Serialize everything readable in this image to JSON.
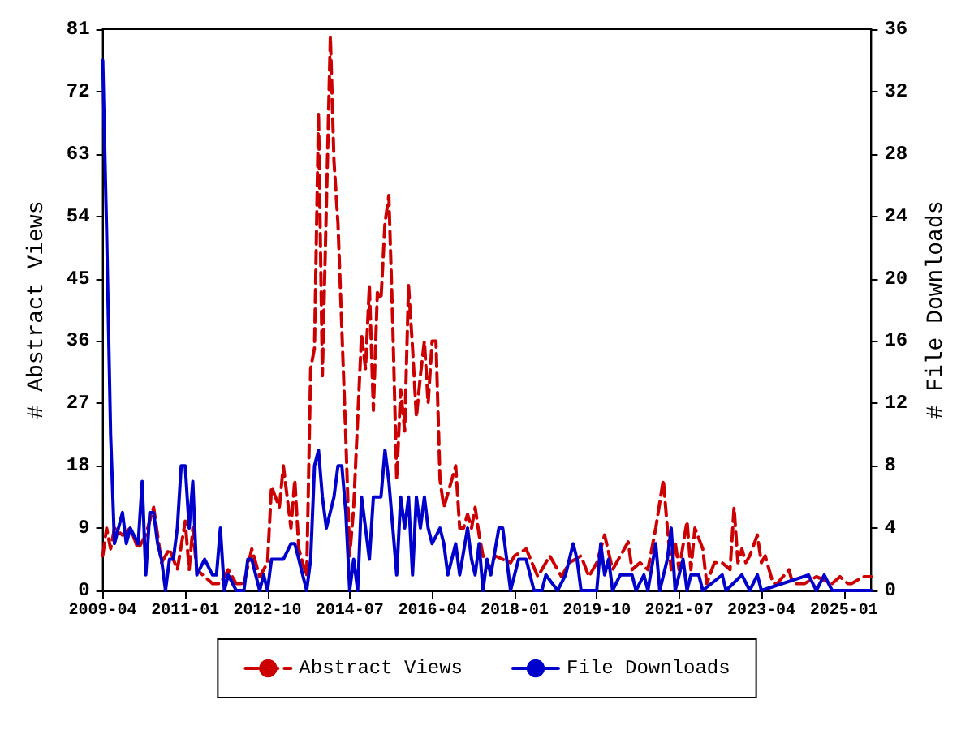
{
  "chart_data": {
    "type": "line",
    "xlabel": null,
    "ylabel": "# Abstract Views",
    "y2label": "# File Downloads",
    "xlim": [
      "2009-04",
      "2025-08"
    ],
    "xticks": [
      "2009-04",
      "2011-01",
      "2012-10",
      "2014-07",
      "2016-04",
      "2018-01",
      "2019-10",
      "2021-07",
      "2023-04",
      "2025-01"
    ],
    "ylim": [
      0,
      81
    ],
    "yticks": [
      0,
      9,
      18,
      27,
      36,
      45,
      54,
      63,
      72,
      81
    ],
    "y2lim": [
      0,
      36
    ],
    "y2ticks": [
      0,
      4,
      8,
      12,
      16,
      20,
      24,
      28,
      32,
      36
    ],
    "grid": false,
    "legend": "bottom",
    "marker": "none",
    "series": [
      {
        "name": "Abstract Views",
        "color": "#cc0000",
        "line_style": "dashed",
        "axis": "y",
        "x": [
          "2009-04",
          "2009-05",
          "2009-06",
          "2009-07",
          "2009-09",
          "2009-11",
          "2010-01",
          "2010-03",
          "2010-05",
          "2010-07",
          "2010-09",
          "2010-11",
          "2011-01",
          "2011-02",
          "2011-03",
          "2011-04",
          "2011-06",
          "2011-08",
          "2011-10",
          "2011-12",
          "2012-02",
          "2012-04",
          "2012-06",
          "2012-08",
          "2012-10",
          "2012-11",
          "2013-01",
          "2013-02",
          "2013-04",
          "2013-05",
          "2013-06",
          "2013-08",
          "2013-09",
          "2013-10",
          "2013-11",
          "2013-12",
          "2014-02",
          "2014-03",
          "2014-04",
          "2014-06",
          "2014-07",
          "2014-08",
          "2014-10",
          "2014-11",
          "2014-12",
          "2015-01",
          "2015-02",
          "2015-03",
          "2015-04",
          "2015-05",
          "2015-06",
          "2015-07",
          "2015-08",
          "2015-09",
          "2015-10",
          "2015-11",
          "2015-12",
          "2016-01",
          "2016-02",
          "2016-03",
          "2016-04",
          "2016-05",
          "2016-06",
          "2016-07",
          "2016-08",
          "2016-09",
          "2016-10",
          "2016-11",
          "2016-12",
          "2017-01",
          "2017-02",
          "2017-03",
          "2017-04",
          "2017-05",
          "2017-06",
          "2017-07",
          "2017-08",
          "2017-12",
          "2018-01",
          "2018-04",
          "2018-07",
          "2018-10",
          "2019-01",
          "2019-03",
          "2019-06",
          "2019-08",
          "2019-10",
          "2019-12",
          "2020-02",
          "2020-06",
          "2020-07",
          "2020-09",
          "2020-11",
          "2021-01",
          "2021-03",
          "2021-04",
          "2021-05",
          "2021-06",
          "2021-07",
          "2021-09",
          "2021-10",
          "2021-11",
          "2022-01",
          "2022-02",
          "2022-04",
          "2022-06",
          "2022-08",
          "2022-09",
          "2022-10",
          "2022-11",
          "2022-12",
          "2023-01",
          "2023-03",
          "2023-04",
          "2023-05",
          "2023-07",
          "2023-08",
          "2023-11",
          "2023-12",
          "2024-03",
          "2024-06",
          "2024-10",
          "2024-12",
          "2025-02",
          "2025-03",
          "2025-06",
          "2025-08"
        ],
        "values": [
          5,
          9,
          6,
          9,
          8,
          9,
          6,
          8,
          12,
          4,
          6,
          3,
          10,
          3,
          9,
          3,
          2,
          1,
          1,
          3,
          1,
          1,
          6,
          2,
          4,
          15,
          12,
          18,
          9,
          16,
          6,
          2,
          32,
          35,
          69,
          31,
          80,
          62,
          53,
          22,
          5,
          12,
          37,
          32,
          44,
          26,
          43,
          42,
          53,
          57,
          38,
          16,
          29,
          23,
          44,
          35,
          25,
          31,
          36,
          27,
          36,
          36,
          16,
          12,
          14,
          16,
          18,
          9,
          9,
          11,
          9,
          12,
          8,
          5,
          4,
          3,
          5,
          4,
          5,
          6,
          2,
          5,
          2,
          4,
          5,
          2,
          4,
          8,
          3,
          7,
          3,
          4,
          3,
          9,
          16,
          9,
          3,
          7,
          3,
          10,
          3,
          9,
          6,
          1,
          4,
          4,
          3,
          12,
          4,
          6,
          4,
          5,
          8,
          4,
          5,
          1,
          1,
          3,
          1,
          1,
          2,
          1,
          2,
          1,
          1,
          2,
          2
        ]
      },
      {
        "name": "File Downloads",
        "color": "#0000cc",
        "line_style": "solid",
        "axis": "y2",
        "x": [
          "2009-04",
          "2009-05",
          "2009-06",
          "2009-07",
          "2009-08",
          "2009-09",
          "2009-10",
          "2009-11",
          "2010-01",
          "2010-02",
          "2010-03",
          "2010-04",
          "2010-05",
          "2010-06",
          "2010-07",
          "2010-08",
          "2010-09",
          "2010-10",
          "2010-11",
          "2010-12",
          "2011-01",
          "2011-02",
          "2011-03",
          "2011-04",
          "2011-06",
          "2011-08",
          "2011-09",
          "2011-10",
          "2011-11",
          "2011-12",
          "2012-02",
          "2012-04",
          "2012-05",
          "2012-06",
          "2012-08",
          "2012-09",
          "2012-10",
          "2012-11",
          "2013-01",
          "2013-02",
          "2013-04",
          "2013-05",
          "2013-06",
          "2013-07",
          "2013-08",
          "2013-09",
          "2013-10",
          "2013-11",
          "2013-12",
          "2014-01",
          "2014-03",
          "2014-04",
          "2014-05",
          "2014-06",
          "2014-07",
          "2014-08",
          "2014-09",
          "2014-10",
          "2014-11",
          "2014-12",
          "2015-01",
          "2015-03",
          "2015-04",
          "2015-05",
          "2015-06",
          "2015-07",
          "2015-08",
          "2015-09",
          "2015-10",
          "2015-11",
          "2015-12",
          "2016-01",
          "2016-02",
          "2016-03",
          "2016-04",
          "2016-06",
          "2016-07",
          "2016-08",
          "2016-10",
          "2016-11",
          "2017-01",
          "2017-02",
          "2017-03",
          "2017-04",
          "2017-05",
          "2017-06",
          "2017-07",
          "2017-09",
          "2017-10",
          "2017-11",
          "2017-12",
          "2018-02",
          "2018-04",
          "2018-06",
          "2018-08",
          "2018-09",
          "2018-12",
          "2019-02",
          "2019-04",
          "2019-05",
          "2019-06",
          "2019-10",
          "2019-11",
          "2019-12",
          "2020-01",
          "2020-02",
          "2020-04",
          "2020-05",
          "2020-07",
          "2020-08",
          "2020-10",
          "2020-11",
          "2021-01",
          "2021-02",
          "2021-04",
          "2021-05",
          "2021-06",
          "2021-08",
          "2021-09",
          "2021-10",
          "2021-12",
          "2022-01",
          "2022-06",
          "2022-07",
          "2022-11",
          "2023-01",
          "2023-03",
          "2023-04",
          "2024-04",
          "2024-06",
          "2024-08",
          "2024-10",
          "2025-08"
        ],
        "values": [
          34,
          23,
          10,
          3,
          4,
          5,
          3,
          4,
          3,
          7,
          1,
          5,
          5,
          3,
          2,
          0,
          2,
          2,
          4,
          8,
          8,
          4,
          7,
          1,
          2,
          1,
          1,
          4,
          0,
          1,
          0,
          0,
          2,
          2,
          0,
          1,
          0,
          2,
          2,
          2,
          3,
          3,
          2,
          1,
          0,
          2,
          8,
          9,
          6,
          4,
          6,
          8,
          8,
          5,
          0,
          2,
          0,
          6,
          4,
          2,
          6,
          6,
          9,
          7,
          4,
          1,
          6,
          4,
          6,
          1,
          6,
          4,
          6,
          4,
          3,
          4,
          3,
          1,
          3,
          1,
          4,
          2,
          1,
          3,
          0,
          2,
          1,
          4,
          4,
          2,
          0,
          2,
          2,
          0,
          0,
          1,
          0,
          1,
          3,
          2,
          0,
          0,
          3,
          1,
          2,
          0,
          1,
          1,
          1,
          0,
          1,
          0,
          3,
          0,
          2,
          4,
          0,
          2,
          0,
          1,
          1,
          0,
          1,
          0,
          1,
          0,
          1,
          0,
          1,
          0,
          1,
          0,
          0
        ]
      }
    ]
  }
}
